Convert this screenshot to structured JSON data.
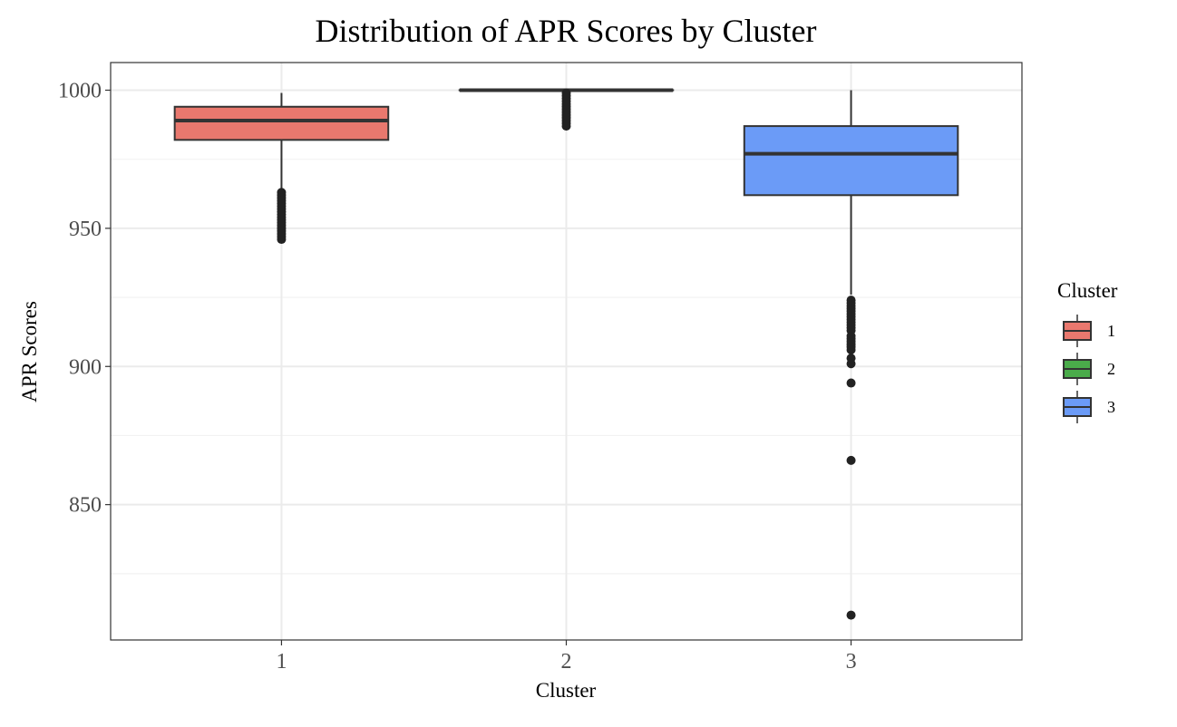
{
  "chart_data": {
    "type": "boxplot",
    "title": "Distribution of APR Scores by Cluster",
    "xlabel": "Cluster",
    "ylabel": "APR Scores",
    "categories": [
      "1",
      "2",
      "3"
    ],
    "ylim": [
      801,
      1010
    ],
    "y_ticks": [
      850,
      900,
      950,
      1000
    ],
    "y_minor_ticks": [
      825,
      875,
      925,
      975
    ],
    "grid": true,
    "legend": {
      "title": "Cluster",
      "position": "right",
      "entries": [
        "1",
        "2",
        "3"
      ]
    },
    "colors": {
      "1": "#e9786e",
      "2": "#4aab4a",
      "3": "#6b9bf7",
      "outline": "#333333",
      "outlier": "#222222"
    },
    "boxes": [
      {
        "category": "1",
        "whisker_low": 964,
        "q1": 982,
        "median": 989,
        "q3": 994,
        "whisker_high": 999,
        "outliers": [
          963,
          962,
          961,
          960,
          959,
          958,
          957,
          956,
          955,
          954,
          953,
          952,
          951,
          950,
          949,
          948,
          947,
          946
        ]
      },
      {
        "category": "2",
        "whisker_low": 1000,
        "q1": 1000,
        "median": 1000,
        "q3": 1000,
        "whisker_high": 1000,
        "outliers": [
          999,
          998,
          997,
          996,
          995,
          994,
          993,
          992,
          991,
          990,
          989,
          988,
          987
        ]
      },
      {
        "category": "3",
        "whisker_low": 926,
        "q1": 962,
        "median": 977,
        "q3": 987,
        "whisker_high": 1000,
        "outliers": [
          924,
          923,
          922,
          921,
          920,
          919,
          918,
          917,
          916,
          915,
          914,
          913,
          911,
          910,
          909,
          908,
          907,
          906,
          903,
          901,
          894,
          866,
          810
        ]
      }
    ]
  }
}
